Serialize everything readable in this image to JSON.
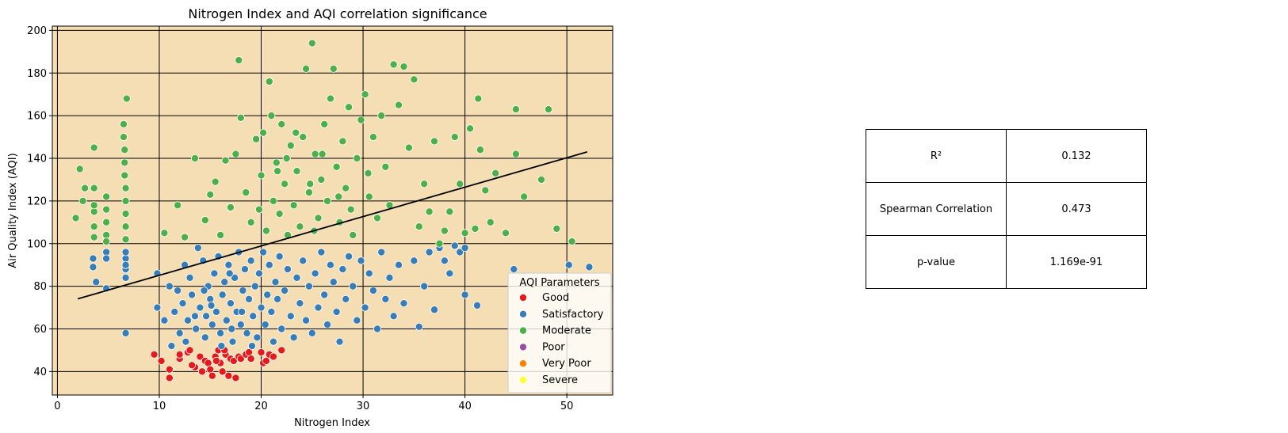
{
  "chart_data": {
    "type": "scatter",
    "title": "Nitrogen Index and AQI correlation significance",
    "xlabel": "Nitrogen Index",
    "ylabel": "Air Quality Index (AQI)",
    "xlim": [
      -0.5,
      54.5
    ],
    "ylim": [
      29,
      202
    ],
    "xticks": [
      0,
      10,
      20,
      30,
      40,
      50
    ],
    "yticks": [
      40,
      60,
      80,
      100,
      120,
      140,
      160,
      180,
      200
    ],
    "grid": true,
    "background_color": "#F5DEB3",
    "legend": {
      "title": "AQI Parameters",
      "placement": "lower-right",
      "entries": [
        {
          "name": "Good",
          "color": "#E41A1C"
        },
        {
          "name": "Satisfactory",
          "color": "#377EB8"
        },
        {
          "name": "Moderate",
          "color": "#4DAF4A"
        },
        {
          "name": "Poor",
          "color": "#984EA3"
        },
        {
          "name": "Very Poor",
          "color": "#FF7F00"
        },
        {
          "name": "Severe",
          "color": "#FFFF33"
        }
      ]
    },
    "regression_line": {
      "x": [
        2,
        52
      ],
      "y": [
        74.1,
        143.0
      ],
      "color": "#000000"
    },
    "series": [
      {
        "name": "Good",
        "color": "#E41A1C",
        "points": [
          [
            9.5,
            48
          ],
          [
            10.2,
            45
          ],
          [
            11,
            41
          ],
          [
            11,
            37
          ],
          [
            12,
            46
          ],
          [
            12,
            48
          ],
          [
            12.8,
            49
          ],
          [
            13,
            50
          ],
          [
            13.5,
            42
          ],
          [
            14,
            47
          ],
          [
            14.5,
            45
          ],
          [
            14.8,
            44
          ],
          [
            15,
            41
          ],
          [
            15.2,
            38
          ],
          [
            15.5,
            47
          ],
          [
            15.8,
            50
          ],
          [
            16,
            44
          ],
          [
            16.2,
            40
          ],
          [
            16.5,
            48
          ],
          [
            16.8,
            38
          ],
          [
            17,
            46
          ],
          [
            17.3,
            45
          ],
          [
            17.5,
            37
          ],
          [
            17.8,
            47
          ],
          [
            18,
            46
          ],
          [
            18.5,
            48
          ],
          [
            18.8,
            49
          ],
          [
            19,
            46
          ],
          [
            20,
            49
          ],
          [
            20.2,
            44
          ],
          [
            20.5,
            45
          ],
          [
            20.8,
            48
          ],
          [
            21.2,
            47
          ],
          [
            22,
            50
          ],
          [
            14.2,
            40
          ],
          [
            15.6,
            45
          ],
          [
            13.2,
            43
          ],
          [
            16.4,
            50
          ]
        ]
      },
      {
        "name": "Satisfactory",
        "color": "#377EB8",
        "points": [
          [
            3.5,
            93
          ],
          [
            3.5,
            89
          ],
          [
            3.8,
            82
          ],
          [
            4.8,
            96
          ],
          [
            4.8,
            93
          ],
          [
            4.8,
            79
          ],
          [
            6.7,
            93
          ],
          [
            6.7,
            88
          ],
          [
            6.7,
            84
          ],
          [
            6.7,
            58
          ],
          [
            6.7,
            90
          ],
          [
            6.7,
            96
          ],
          [
            9.8,
            86
          ],
          [
            9.8,
            70
          ],
          [
            10.5,
            64
          ],
          [
            11,
            80
          ],
          [
            11.2,
            52
          ],
          [
            11.5,
            68
          ],
          [
            11.8,
            78
          ],
          [
            12,
            58
          ],
          [
            12.3,
            72
          ],
          [
            12.5,
            90
          ],
          [
            12.8,
            64
          ],
          [
            13,
            84
          ],
          [
            13.2,
            76
          ],
          [
            13.5,
            66
          ],
          [
            13.8,
            98
          ],
          [
            14,
            70
          ],
          [
            14.3,
            92
          ],
          [
            14.5,
            56
          ],
          [
            14.8,
            80
          ],
          [
            15,
            74
          ],
          [
            15.2,
            62
          ],
          [
            15.4,
            86
          ],
          [
            15.6,
            68
          ],
          [
            15.8,
            94
          ],
          [
            16,
            58
          ],
          [
            16.2,
            76
          ],
          [
            16.4,
            82
          ],
          [
            16.6,
            64
          ],
          [
            16.8,
            90
          ],
          [
            17,
            72
          ],
          [
            17.2,
            54
          ],
          [
            17.4,
            84
          ],
          [
            17.6,
            68
          ],
          [
            17.8,
            96
          ],
          [
            18,
            62
          ],
          [
            18.2,
            78
          ],
          [
            18.4,
            88
          ],
          [
            18.6,
            58
          ],
          [
            18.8,
            74
          ],
          [
            19,
            92
          ],
          [
            19.2,
            66
          ],
          [
            19.4,
            80
          ],
          [
            19.6,
            56
          ],
          [
            19.8,
            86
          ],
          [
            20,
            70
          ],
          [
            20.2,
            96
          ],
          [
            20.4,
            62
          ],
          [
            20.6,
            76
          ],
          [
            20.8,
            90
          ],
          [
            21,
            68
          ],
          [
            21.2,
            54
          ],
          [
            21.4,
            82
          ],
          [
            21.6,
            74
          ],
          [
            21.8,
            94
          ],
          [
            22,
            60
          ],
          [
            22.3,
            78
          ],
          [
            22.6,
            88
          ],
          [
            22.9,
            66
          ],
          [
            23.2,
            56
          ],
          [
            23.5,
            84
          ],
          [
            23.8,
            72
          ],
          [
            24.1,
            92
          ],
          [
            24.4,
            64
          ],
          [
            24.7,
            80
          ],
          [
            25,
            58
          ],
          [
            25.3,
            86
          ],
          [
            25.6,
            70
          ],
          [
            25.9,
            96
          ],
          [
            26.2,
            76
          ],
          [
            26.5,
            62
          ],
          [
            26.8,
            90
          ],
          [
            27.1,
            82
          ],
          [
            27.4,
            68
          ],
          [
            27.7,
            54
          ],
          [
            28,
            88
          ],
          [
            28.3,
            74
          ],
          [
            28.6,
            94
          ],
          [
            29,
            80
          ],
          [
            29.4,
            64
          ],
          [
            29.8,
            92
          ],
          [
            30.2,
            70
          ],
          [
            30.6,
            86
          ],
          [
            31,
            78
          ],
          [
            31.4,
            60
          ],
          [
            31.8,
            96
          ],
          [
            32.2,
            74
          ],
          [
            32.6,
            84
          ],
          [
            33,
            66
          ],
          [
            33.5,
            90
          ],
          [
            34,
            72
          ],
          [
            35,
            92
          ],
          [
            35.5,
            61
          ],
          [
            36,
            80
          ],
          [
            36.5,
            96
          ],
          [
            37,
            69
          ],
          [
            37.5,
            98
          ],
          [
            38,
            92
          ],
          [
            38.5,
            86
          ],
          [
            39,
            99
          ],
          [
            39.5,
            96
          ],
          [
            40,
            98
          ],
          [
            40,
            76
          ],
          [
            41.2,
            71
          ],
          [
            44.8,
            88
          ],
          [
            50.2,
            90
          ],
          [
            52.2,
            89
          ],
          [
            12.6,
            54
          ],
          [
            13.6,
            60
          ],
          [
            14.6,
            66
          ],
          [
            15.1,
            71
          ],
          [
            16.1,
            52
          ],
          [
            17.1,
            60
          ],
          [
            18.1,
            68
          ],
          [
            19.1,
            52
          ],
          [
            14.4,
            78
          ],
          [
            16.9,
            86
          ]
        ]
      },
      {
        "name": "Moderate",
        "color": "#4DAF4A",
        "points": [
          [
            1.8,
            112
          ],
          [
            2.2,
            135
          ],
          [
            2.5,
            120
          ],
          [
            2.7,
            126
          ],
          [
            3.6,
            145
          ],
          [
            3.6,
            126
          ],
          [
            3.6,
            115
          ],
          [
            3.6,
            108
          ],
          [
            3.6,
            103
          ],
          [
            3.6,
            118
          ],
          [
            4.8,
            122
          ],
          [
            4.8,
            116
          ],
          [
            4.8,
            110
          ],
          [
            4.8,
            104
          ],
          [
            4.8,
            101
          ],
          [
            6.5,
            156
          ],
          [
            6.5,
            150
          ],
          [
            6.6,
            144
          ],
          [
            6.6,
            138
          ],
          [
            6.6,
            132
          ],
          [
            6.7,
            126
          ],
          [
            6.7,
            120
          ],
          [
            6.7,
            114
          ],
          [
            6.7,
            108
          ],
          [
            6.7,
            102
          ],
          [
            6.8,
            168
          ],
          [
            10.5,
            105
          ],
          [
            11.8,
            118
          ],
          [
            12.5,
            103
          ],
          [
            13.5,
            140
          ],
          [
            14.5,
            111
          ],
          [
            15,
            123
          ],
          [
            15.5,
            129
          ],
          [
            16,
            104
          ],
          [
            16.5,
            139
          ],
          [
            17,
            117
          ],
          [
            17.5,
            142
          ],
          [
            17.8,
            186
          ],
          [
            18,
            159
          ],
          [
            18.5,
            124
          ],
          [
            19,
            110
          ],
          [
            19.5,
            149
          ],
          [
            20,
            132
          ],
          [
            20.2,
            152
          ],
          [
            20.5,
            106
          ],
          [
            20.8,
            176
          ],
          [
            21,
            160
          ],
          [
            21.2,
            120
          ],
          [
            21.5,
            138
          ],
          [
            21.8,
            114
          ],
          [
            22,
            156
          ],
          [
            22.3,
            128
          ],
          [
            22.6,
            104
          ],
          [
            22.9,
            146
          ],
          [
            23.2,
            118
          ],
          [
            23.5,
            134
          ],
          [
            23.8,
            108
          ],
          [
            24.1,
            150
          ],
          [
            24.4,
            182
          ],
          [
            24.7,
            124
          ],
          [
            25,
            194
          ],
          [
            25.3,
            142
          ],
          [
            25.6,
            112
          ],
          [
            25.9,
            130
          ],
          [
            26.2,
            156
          ],
          [
            26.5,
            120
          ],
          [
            26.8,
            168
          ],
          [
            27.1,
            182
          ],
          [
            27.4,
            136
          ],
          [
            27.7,
            110
          ],
          [
            28,
            148
          ],
          [
            28.3,
            126
          ],
          [
            28.6,
            164
          ],
          [
            29,
            104
          ],
          [
            29.4,
            140
          ],
          [
            29.8,
            158
          ],
          [
            30.2,
            170
          ],
          [
            30.6,
            122
          ],
          [
            31,
            150
          ],
          [
            31.4,
            112
          ],
          [
            31.8,
            160
          ],
          [
            32.2,
            136
          ],
          [
            32.6,
            118
          ],
          [
            33,
            184
          ],
          [
            33.5,
            165
          ],
          [
            34,
            183
          ],
          [
            34.5,
            145
          ],
          [
            35,
            177
          ],
          [
            35.5,
            108
          ],
          [
            36,
            128
          ],
          [
            36.5,
            115
          ],
          [
            37,
            148
          ],
          [
            37.5,
            100
          ],
          [
            38,
            106
          ],
          [
            38.5,
            115
          ],
          [
            39,
            150
          ],
          [
            39.5,
            128
          ],
          [
            40,
            105
          ],
          [
            40.5,
            154
          ],
          [
            41,
            107
          ],
          [
            41.3,
            168
          ],
          [
            41.5,
            144
          ],
          [
            42,
            125
          ],
          [
            42.5,
            110
          ],
          [
            43,
            133
          ],
          [
            44,
            105
          ],
          [
            45,
            163
          ],
          [
            45,
            142
          ],
          [
            45.8,
            122
          ],
          [
            47.5,
            130
          ],
          [
            48.2,
            163
          ],
          [
            49,
            107
          ],
          [
            50.5,
            101
          ],
          [
            22.5,
            140
          ],
          [
            24.8,
            128
          ],
          [
            26,
            142
          ],
          [
            27.6,
            122
          ],
          [
            19.8,
            116
          ],
          [
            21.6,
            134
          ],
          [
            23.4,
            152
          ],
          [
            25.2,
            106
          ],
          [
            28.8,
            116
          ],
          [
            30.5,
            133
          ]
        ]
      }
    ]
  },
  "stats_table": {
    "rows": [
      {
        "label": "R²",
        "value": "0.132"
      },
      {
        "label": "Spearman Correlation",
        "value": "0.473"
      },
      {
        "label": "p-value",
        "value": "1.169e-91"
      }
    ]
  }
}
